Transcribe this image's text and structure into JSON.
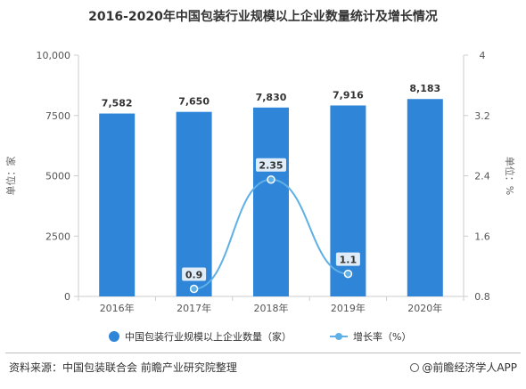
{
  "chart_data": {
    "type": "bar+line",
    "title": "2016-2020年中国包装行业规模以上企业数量统计及增长情况",
    "categories": [
      "2016年",
      "2017年",
      "2018年",
      "2019年",
      "2020年"
    ],
    "series": [
      {
        "name": "中国包装行业规模以上企业数量（家）",
        "type": "bar",
        "axis": "left",
        "values": [
          7582,
          7650,
          7830,
          7916,
          8183
        ],
        "labels": [
          "7,582",
          "7,650",
          "7,830",
          "7,916",
          "8,183"
        ]
      },
      {
        "name": "增长率（%）",
        "type": "line",
        "axis": "right",
        "values": [
          null,
          0.9,
          2.35,
          1.1,
          null
        ],
        "labels": [
          "",
          "0.9",
          "2.35",
          "1.1",
          ""
        ]
      }
    ],
    "ylabel_left": "单位：家",
    "ylabel_right": "单位：%",
    "ylim_left": [
      0,
      10000
    ],
    "ylim_right": [
      0.8,
      4
    ],
    "yticks_left": [
      "0",
      "2500",
      "5000",
      "7500",
      "10,000"
    ],
    "yticks_right": [
      "0.8",
      "1.6",
      "2.4",
      "3.2",
      "4"
    ],
    "grid": false,
    "legend_position": "bottom",
    "colors": {
      "bar": "#2f86d8",
      "line": "#5fb0e6",
      "axis": "#cccccc"
    }
  },
  "source": "资料来源：中国包装联合会 前瞻产业研究院整理",
  "brand": "@前瞻经济学人APP"
}
